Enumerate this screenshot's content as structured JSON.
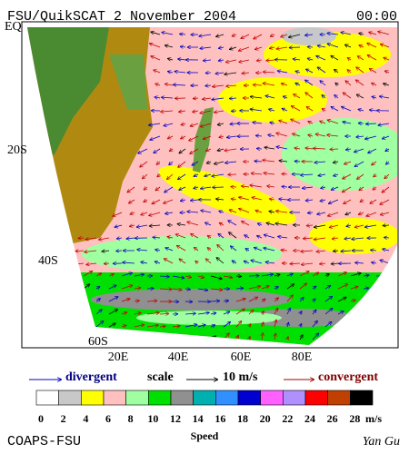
{
  "header": {
    "title": "FSU/QuikSCAT  2 November 2004",
    "time": "00:00"
  },
  "map": {
    "lat_labels": [
      "EQ",
      "20S",
      "40S",
      "60S"
    ],
    "lon_labels": [
      "20E",
      "40E",
      "60E",
      "80E"
    ]
  },
  "legend": {
    "divergent": "divergent",
    "scale": "scale",
    "scale_value": "10 m/s",
    "convergent": "convergent"
  },
  "colorbar": {
    "title": "Speed",
    "unit": "m/s",
    "labels": [
      0,
      2,
      4,
      6,
      8,
      10,
      12,
      14,
      16,
      18,
      20,
      22,
      24,
      26,
      28
    ],
    "colors": [
      "#ffffff",
      "#c8c8c8",
      "#ffff00",
      "#ffc0c0",
      "#a0ffa0",
      "#00e000",
      "#909090",
      "#00b0b0",
      "#3090ff",
      "#0000d0",
      "#ff60ff",
      "#b090ff",
      "#ff0000",
      "#c04000",
      "#000000"
    ]
  },
  "footer": {
    "left": "COAPS-FSU",
    "right": "Yan Gu"
  }
}
